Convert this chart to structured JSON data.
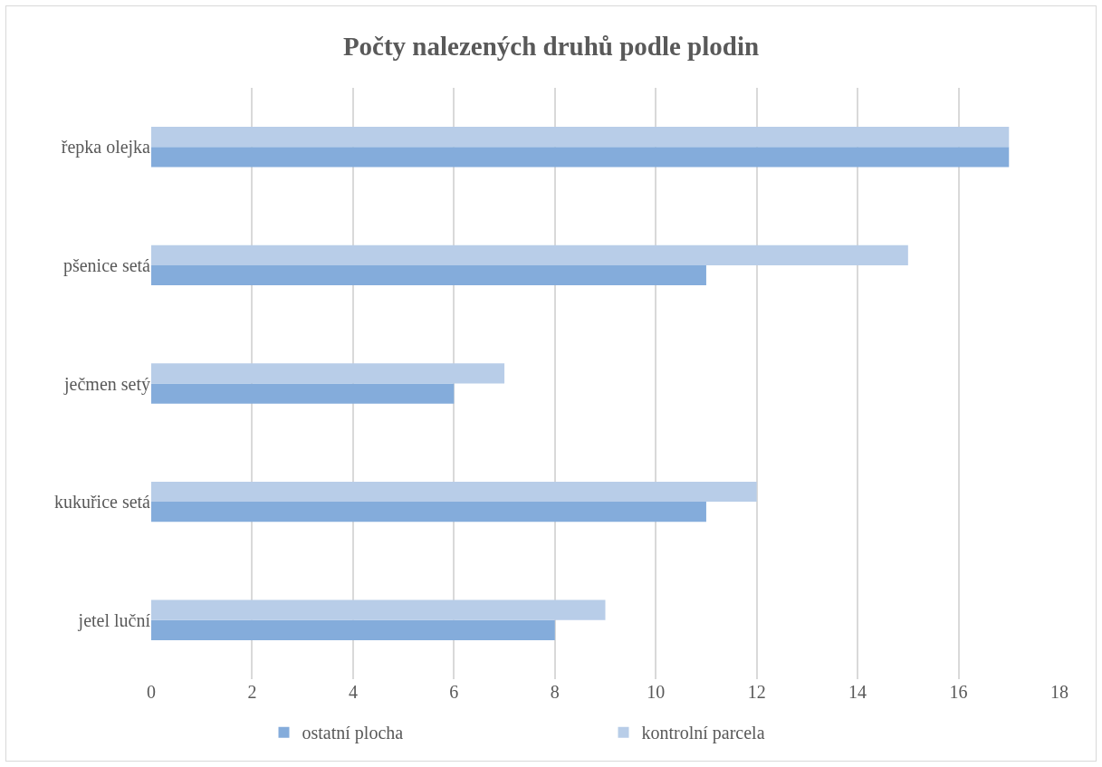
{
  "chart_data": {
    "type": "bar",
    "orientation": "horizontal",
    "title": "Počty nalezených druhů podle plodin",
    "categories": [
      "řepka olejka",
      "pšenice setá",
      "ječmen setý",
      "kukuřice setá",
      "jetel luční"
    ],
    "series": [
      {
        "name": "ostatní plocha",
        "color": "#84acdb",
        "values": [
          17,
          11,
          6,
          11,
          8
        ]
      },
      {
        "name": "kontrolní parcela",
        "color": "#b8cde8",
        "values": [
          17,
          15,
          7,
          12,
          9
        ]
      }
    ],
    "xlim": [
      0,
      18
    ],
    "xticks": [
      0,
      2,
      4,
      6,
      8,
      10,
      12,
      14,
      16,
      18
    ],
    "grid": "x",
    "legend": "bottom"
  }
}
